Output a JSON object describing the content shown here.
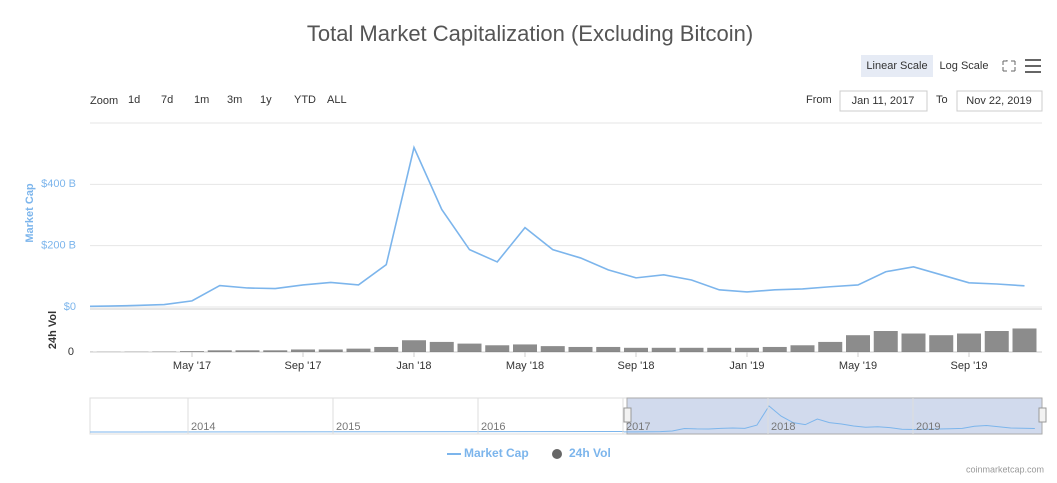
{
  "chart_data": {
    "type": "line",
    "title": "Total Market Capitalization (Excluding Bitcoin)",
    "y_label": "Market Cap",
    "y2_label": "24h Vol",
    "x": [
      "2017-01",
      "2017-02",
      "2017-03",
      "2017-04",
      "2017-05",
      "2017-06",
      "2017-07",
      "2017-08",
      "2017-09",
      "2017-10",
      "2017-11",
      "2017-12",
      "2018-01",
      "2018-02",
      "2018-03",
      "2018-04",
      "2018-05",
      "2018-06",
      "2018-07",
      "2018-08",
      "2018-09",
      "2018-10",
      "2018-11",
      "2018-12",
      "2019-01",
      "2019-02",
      "2019-03",
      "2019-04",
      "2019-05",
      "2019-06",
      "2019-07",
      "2019-08",
      "2019-09",
      "2019-10",
      "2019-11"
    ],
    "series": [
      {
        "name": "Market Cap",
        "color": "#7cb5ec",
        "values": [
          2,
          3,
          5,
          8,
          20,
          70,
          62,
          60,
          72,
          80,
          72,
          138,
          520,
          318,
          187,
          147,
          259,
          187,
          160,
          121,
          95,
          105,
          88,
          56,
          49,
          56,
          59,
          66,
          72,
          115,
          131,
          105,
          79,
          75,
          69
        ]
      },
      {
        "name": "24h Vol",
        "color": "#666666",
        "axis": "y2",
        "values": [
          0.2,
          0.2,
          0.3,
          0.5,
          1,
          2,
          2,
          2,
          3,
          3,
          4,
          6,
          14,
          12,
          10,
          8,
          9,
          7,
          6,
          6,
          5,
          5,
          5,
          5,
          5,
          6,
          8,
          12,
          20,
          25,
          22,
          20,
          22,
          25,
          28
        ]
      }
    ],
    "ylim": [
      0,
      600
    ],
    "yticks": [
      {
        "value": 0,
        "label": "$0"
      },
      {
        "value": 200,
        "label": "$200 B"
      },
      {
        "value": 400,
        "label": "$400 B"
      }
    ],
    "y2lim": [
      0,
      50
    ],
    "y2ticks": [
      0
    ],
    "xticks": [
      {
        "value": "2017-05",
        "label": "May '17"
      },
      {
        "value": "2017-09",
        "label": "Sep '17"
      },
      {
        "value": "2018-01",
        "label": "Jan '18"
      },
      {
        "value": "2018-05",
        "label": "May '18"
      },
      {
        "value": "2018-09",
        "label": "Sep '18"
      },
      {
        "value": "2019-01",
        "label": "Jan '19"
      },
      {
        "value": "2019-05",
        "label": "May '19"
      },
      {
        "value": "2019-09",
        "label": "Sep '19"
      }
    ],
    "grid": true
  },
  "controls": {
    "zoom_label": "Zoom",
    "zoom": [
      "1d",
      "7d",
      "1m",
      "3m",
      "1y",
      "YTD",
      "ALL"
    ],
    "from_label": "From",
    "from": "Jan 11, 2017",
    "to_label": "To",
    "to": "Nov 22, 2019",
    "linear": "Linear Scale",
    "log": "Log Scale"
  },
  "navigator": {
    "labels": [
      "2014",
      "2015",
      "2016",
      "2017",
      "2018",
      "2019"
    ]
  },
  "credit": "coinmarketcap.com"
}
